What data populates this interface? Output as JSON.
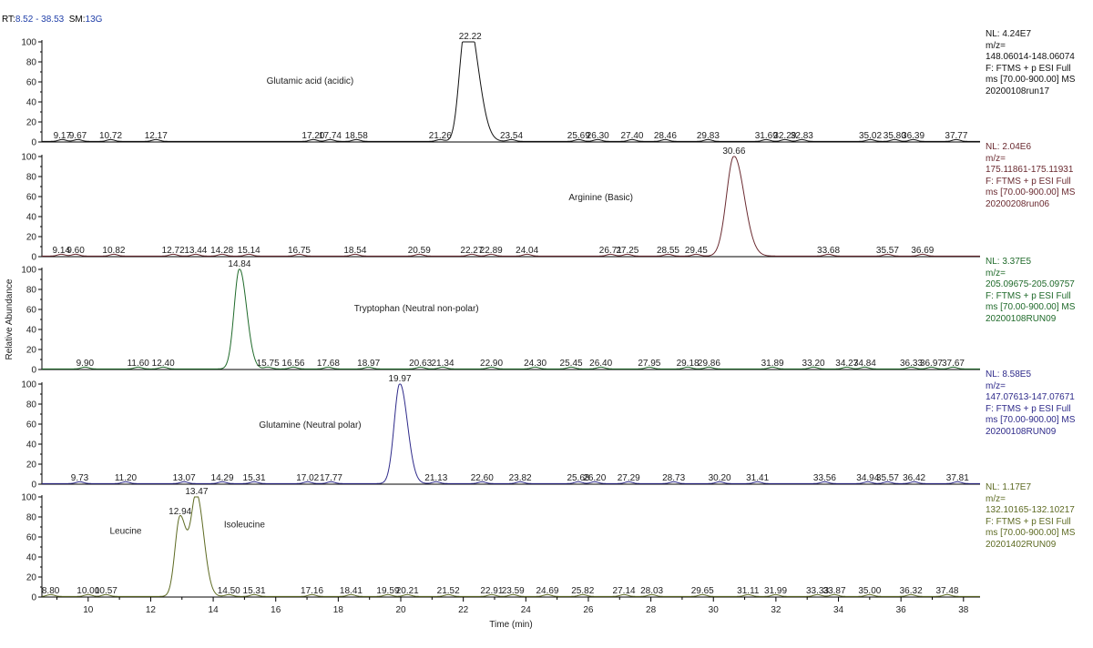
{
  "header": {
    "rt_label": "RT:",
    "rt_value": "8.52 - 38.53",
    "sm_label": "SM:",
    "sm_value": "13G"
  },
  "colors": {
    "axis": "#000000",
    "text": "#222222",
    "header_value": "#1f3ea8"
  },
  "chart_data": {
    "type": "line",
    "xlabel": "Time (min)",
    "ylabel": "Relative Abundance",
    "xlim": [
      8.52,
      38.53
    ],
    "xticks": [
      10,
      12,
      14,
      16,
      18,
      20,
      22,
      24,
      26,
      28,
      30,
      32,
      34,
      36,
      38
    ],
    "ylim": [
      0,
      100
    ],
    "yticks": [
      0,
      20,
      40,
      60,
      80,
      100
    ],
    "panels": [
      {
        "name": "Glutamic acid (acidic)",
        "color": "#111111",
        "info": [
          "NL: 4.24E7",
          "m/z=",
          "148.06014-148.06074",
          "F: FTMS + p ESI Full",
          "ms [70.00-900.00] MS",
          "20200108run17"
        ],
        "peaks": [
          {
            "rt": 22.22,
            "height": 100,
            "width": 0.23
          },
          {
            "rt": 21.98,
            "height": 45,
            "width": 0.16
          }
        ],
        "peak_labels": [
          {
            "text": "22.22",
            "x": 22.22,
            "y": 100
          }
        ],
        "small_labels": [
          "9.17",
          "9.67",
          "10.72",
          "12.17",
          "17.20",
          "17.74",
          "18.58",
          "21.26",
          "23.54",
          "25.69",
          "26.30",
          "27.40",
          "28.46",
          "29.83",
          "31.69",
          "32.29",
          "32.83",
          "35.02",
          "35.80",
          "36.39",
          "37.77"
        ],
        "small_x": [
          9.17,
          9.67,
          10.72,
          12.17,
          17.2,
          17.74,
          18.58,
          21.26,
          23.54,
          25.69,
          26.3,
          27.4,
          28.46,
          29.83,
          31.69,
          32.29,
          32.83,
          35.02,
          35.8,
          36.39,
          37.77
        ],
        "annotation": {
          "text": "Glutamic acid (acidic)",
          "x": 17.1,
          "y": 62
        }
      },
      {
        "name": "Arginine (Basic)",
        "color": "#6a2a30",
        "info": [
          "NL: 2.04E6",
          "m/z=",
          "175.11861-175.11931",
          "F: FTMS + p ESI Full",
          "ms [70.00-900.00] MS",
          "20200208run06"
        ],
        "peaks": [
          {
            "rt": 30.66,
            "height": 100,
            "width": 0.24
          }
        ],
        "peak_labels": [
          {
            "text": "30.66",
            "x": 30.66,
            "y": 100
          }
        ],
        "small_labels": [
          "9.14",
          "9.60",
          "10.82",
          "12.72",
          "13.44",
          "14.28",
          "15.14",
          "16.75",
          "18.54",
          "20.59",
          "22.27",
          "22.89",
          "24.04",
          "26.71",
          "27.25",
          "28.55",
          "29.45",
          "33.68",
          "35.57",
          "36.69"
        ],
        "small_x": [
          9.14,
          9.6,
          10.82,
          12.72,
          13.44,
          14.28,
          15.14,
          16.75,
          18.54,
          20.59,
          22.27,
          22.89,
          24.04,
          26.71,
          27.25,
          28.55,
          29.45,
          33.68,
          35.57,
          36.69
        ],
        "annotation": {
          "text": "Arginine (Basic)",
          "x": 26.4,
          "y": 60
        }
      },
      {
        "name": "Tryptophan (Neutral non-polar)",
        "color": "#1f6a2a",
        "info": [
          "NL: 3.37E5",
          "m/z=",
          "205.09675-205.09757",
          "F: FTMS + p ESI Full",
          "ms [70.00-900.00] MS",
          "20200108RUN09"
        ],
        "peaks": [
          {
            "rt": 14.84,
            "height": 100,
            "width": 0.17
          }
        ],
        "peak_labels": [
          {
            "text": "14.84",
            "x": 14.84,
            "y": 100
          }
        ],
        "small_labels": [
          "9.90",
          "11.60",
          "12.40",
          "15.75",
          "16.56",
          "17.68",
          "18.97",
          "20.63",
          "21.34",
          "22.90",
          "24.30",
          "25.45",
          "26.40",
          "27.95",
          "29.18",
          "29.86",
          "31.89",
          "33.20",
          "34.27",
          "34.84",
          "36.33",
          "36.97",
          "37.67"
        ],
        "small_x": [
          9.9,
          11.6,
          12.4,
          15.75,
          16.56,
          17.68,
          18.97,
          20.63,
          21.34,
          22.9,
          24.3,
          25.45,
          26.4,
          27.95,
          29.18,
          29.86,
          31.89,
          33.2,
          34.27,
          34.84,
          36.33,
          36.97,
          37.67
        ],
        "annotation": {
          "text": "Tryptophan (Neutral non-polar)",
          "x": 20.5,
          "y": 62
        }
      },
      {
        "name": "Glutamine (Neutral polar)",
        "color": "#2e2a8a",
        "info": [
          "NL: 8.58E5",
          "m/z=",
          "147.07613-147.07671",
          "F: FTMS + p ESI Full",
          "ms [70.00-900.00] MS",
          "20200108RUN09"
        ],
        "peaks": [
          {
            "rt": 19.97,
            "height": 100,
            "width": 0.18
          }
        ],
        "peak_labels": [
          {
            "text": "19.97",
            "x": 19.97,
            "y": 100
          }
        ],
        "small_labels": [
          "9.73",
          "11.20",
          "13.07",
          "14.29",
          "15.31",
          "17.02",
          "17.77",
          "21.13",
          "22.60",
          "23.82",
          "25.68",
          "26.20",
          "27.29",
          "28.73",
          "30.20",
          "31.41",
          "33.56",
          "34.94",
          "35.57",
          "36.42",
          "37.81"
        ],
        "small_x": [
          9.73,
          11.2,
          13.07,
          14.29,
          15.31,
          17.02,
          17.77,
          21.13,
          22.6,
          23.82,
          25.68,
          26.2,
          27.29,
          28.73,
          30.2,
          31.41,
          33.56,
          34.94,
          35.57,
          36.42,
          37.81
        ],
        "annotation": {
          "text": "Glutamine (Neutral polar)",
          "x": 17.1,
          "y": 60
        }
      },
      {
        "name": "Leucine / Isoleucine",
        "color": "#5d6a22",
        "info": [
          "NL: 1.17E7",
          "m/z=",
          "132.10165-132.10217",
          "F: FTMS + p ESI Full",
          "ms [70.00-900.00] MS",
          "20201402RUN09"
        ],
        "peaks": [
          {
            "rt": 12.94,
            "height": 80,
            "width": 0.16
          },
          {
            "rt": 13.47,
            "height": 100,
            "width": 0.17
          }
        ],
        "peak_labels": [
          {
            "text": "12.94",
            "x": 12.94,
            "y": 80
          },
          {
            "text": "13.47",
            "x": 13.47,
            "y": 100
          }
        ],
        "small_labels": [
          "8.80",
          "10.00",
          "10.57",
          "14.50",
          "15.31",
          "17.16",
          "18.41",
          "19.59",
          "20.21",
          "21.52",
          "22.91",
          "23.59",
          "24.69",
          "25.82",
          "27.14",
          "28.03",
          "29.65",
          "31.11",
          "31.99",
          "33.33",
          "33.87",
          "35.00",
          "36.32",
          "37.48"
        ],
        "small_x": [
          8.8,
          10.0,
          10.57,
          14.5,
          15.31,
          17.16,
          18.41,
          19.59,
          20.21,
          21.52,
          22.91,
          23.59,
          24.69,
          25.82,
          27.14,
          28.03,
          29.65,
          31.11,
          31.99,
          33.33,
          33.87,
          35.0,
          36.32,
          37.48
        ],
        "annotations": [
          {
            "text": "Leucine",
            "x": 11.2,
            "y": 67
          },
          {
            "text": "Isoleucine",
            "x": 15.0,
            "y": 73
          }
        ]
      }
    ]
  }
}
